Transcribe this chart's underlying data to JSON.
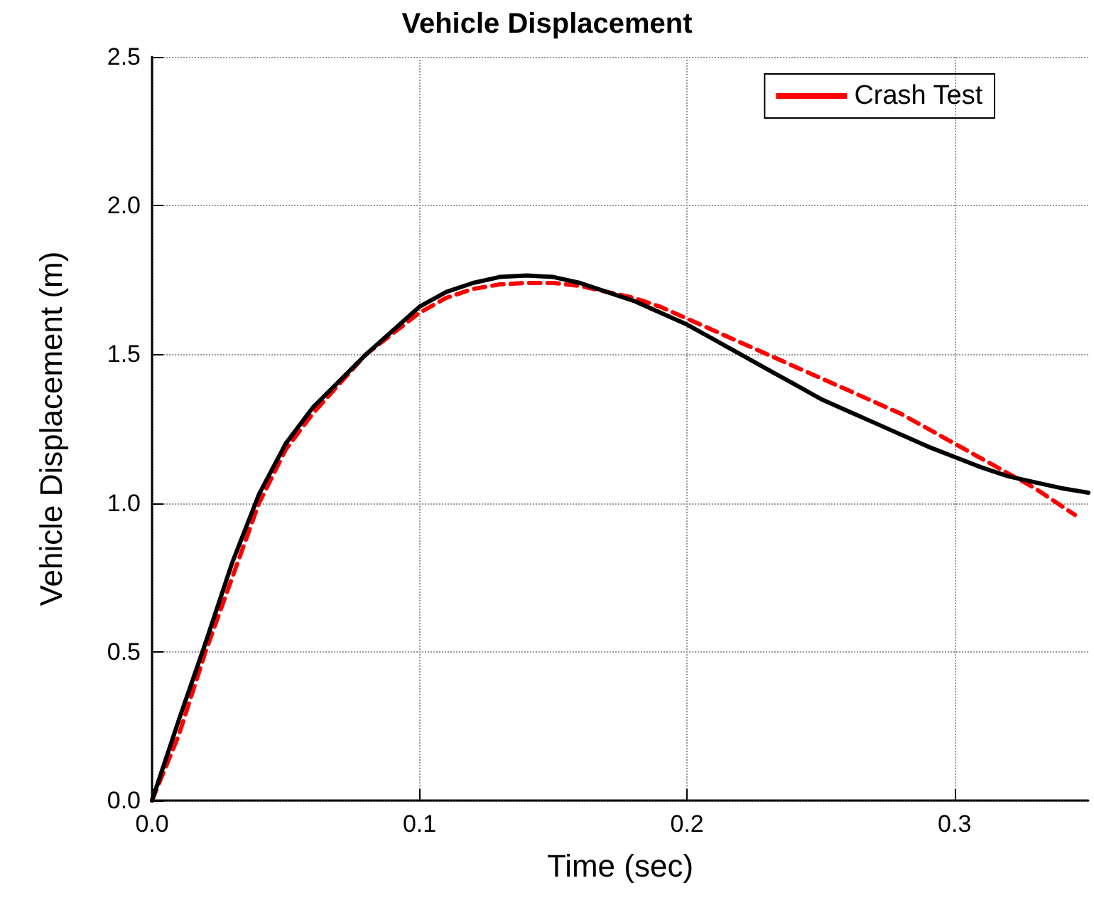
{
  "chart_data": {
    "type": "line",
    "title": "Vehicle Displacement",
    "xlabel": "Time (sec)",
    "ylabel": "Vehicle Displacement (m)",
    "xlim": [
      0,
      0.35
    ],
    "xticks": [
      {
        "value": 0,
        "label": "0.0"
      },
      0.1,
      0.2,
      0.3
    ],
    "ylim": [
      0,
      2.5
    ],
    "yticks": [
      {
        "value": 0,
        "label": "0.0"
      },
      0.5,
      {
        "value": 1,
        "label": "1.0"
      },
      1.5,
      {
        "value": 2,
        "label": "2.0"
      },
      2.5
    ],
    "grid": true,
    "legend": "top right",
    "marker": "none",
    "series": [
      {
        "name": "Crash Test",
        "color": "#ff0000",
        "line_style": "dashed",
        "x": [
          0,
          0.01,
          0.02,
          0.03,
          0.04,
          0.05,
          0.06,
          0.07,
          0.08,
          0.09,
          0.1,
          0.11,
          0.12,
          0.13,
          0.14,
          0.15,
          0.16,
          0.17,
          0.18,
          0.19,
          0.2,
          0.21,
          0.22,
          0.23,
          0.24,
          0.25,
          0.26,
          0.27,
          0.28,
          0.29,
          0.3,
          0.31,
          0.32,
          0.33,
          0.34,
          0.345
        ],
        "values": [
          0,
          0.22,
          0.5,
          0.75,
          1.0,
          1.18,
          1.3,
          1.4,
          1.5,
          1.57,
          1.64,
          1.69,
          1.72,
          1.735,
          1.74,
          1.74,
          1.73,
          1.71,
          1.69,
          1.66,
          1.62,
          1.58,
          1.54,
          1.5,
          1.46,
          1.42,
          1.38,
          1.34,
          1.3,
          1.25,
          1.2,
          1.15,
          1.1,
          1.05,
          0.99,
          0.96
        ]
      },
      {
        "color": "#000000",
        "line_style": "solid",
        "x": [
          0,
          0.01,
          0.02,
          0.03,
          0.04,
          0.05,
          0.06,
          0.07,
          0.08,
          0.09,
          0.1,
          0.11,
          0.12,
          0.13,
          0.14,
          0.15,
          0.16,
          0.17,
          0.18,
          0.19,
          0.2,
          0.21,
          0.22,
          0.23,
          0.24,
          0.25,
          0.26,
          0.27,
          0.28,
          0.29,
          0.3,
          0.31,
          0.32,
          0.33,
          0.34,
          0.35
        ],
        "values": [
          0,
          0.27,
          0.53,
          0.8,
          1.03,
          1.2,
          1.32,
          1.41,
          1.5,
          1.58,
          1.66,
          1.71,
          1.74,
          1.76,
          1.765,
          1.76,
          1.74,
          1.71,
          1.68,
          1.64,
          1.6,
          1.55,
          1.5,
          1.45,
          1.4,
          1.35,
          1.31,
          1.27,
          1.23,
          1.19,
          1.155,
          1.12,
          1.09,
          1.07,
          1.05,
          1.035
        ]
      }
    ]
  }
}
